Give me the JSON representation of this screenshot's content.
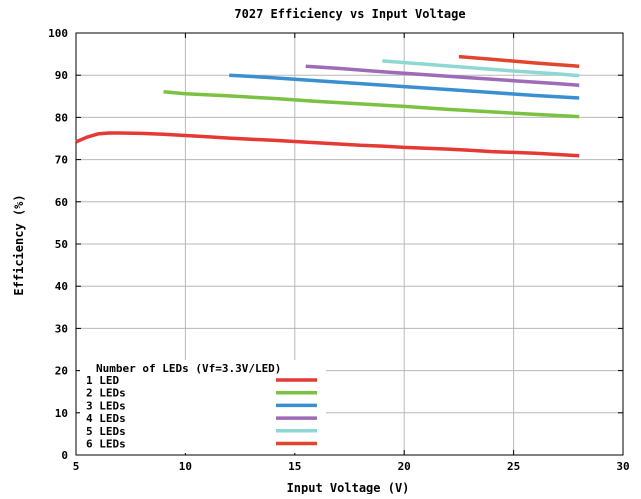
{
  "chart_data": {
    "type": "line",
    "title": "7027 Efficiency vs Input Voltage",
    "xlabel": "Input Voltage (V)",
    "ylabel": "Efficiency (%)",
    "xlim": [
      5,
      30
    ],
    "ylim": [
      0,
      100
    ],
    "x_ticks": [
      "5",
      "10",
      "15",
      "20",
      "25",
      "30"
    ],
    "y_ticks": [
      "0",
      "10",
      "20",
      "30",
      "40",
      "50",
      "60",
      "70",
      "80",
      "90",
      "100"
    ],
    "grid": true,
    "legend_title": "Number of LEDs (Vf=3.3V/LED)",
    "legend_position": "bottom-left",
    "series": [
      {
        "name": "1 LED",
        "color": "#e53935",
        "points": [
          [
            5,
            74.2
          ],
          [
            5.5,
            75.3
          ],
          [
            6,
            76.1
          ],
          [
            6.5,
            76.3
          ],
          [
            7,
            76.3
          ],
          [
            8,
            76.2
          ],
          [
            9,
            76.0
          ],
          [
            10,
            75.7
          ],
          [
            11,
            75.4
          ],
          [
            12,
            75.1
          ],
          [
            13,
            74.8
          ],
          [
            14,
            74.6
          ],
          [
            15,
            74.3
          ],
          [
            16,
            74.0
          ],
          [
            17,
            73.7
          ],
          [
            18,
            73.4
          ],
          [
            19,
            73.2
          ],
          [
            20,
            72.9
          ],
          [
            21,
            72.7
          ],
          [
            22,
            72.5
          ],
          [
            23,
            72.2
          ],
          [
            24,
            71.9
          ],
          [
            25,
            71.7
          ],
          [
            26,
            71.5
          ],
          [
            27,
            71.2
          ],
          [
            28,
            70.9
          ]
        ]
      },
      {
        "name": "2 LEDs",
        "color": "#7cc242",
        "points": [
          [
            9,
            86.1
          ],
          [
            10,
            85.6
          ],
          [
            12,
            85.1
          ],
          [
            14,
            84.5
          ],
          [
            16,
            83.8
          ],
          [
            18,
            83.2
          ],
          [
            20,
            82.6
          ],
          [
            22,
            81.9
          ],
          [
            24,
            81.3
          ],
          [
            26,
            80.7
          ],
          [
            28,
            80.2
          ]
        ]
      },
      {
        "name": "3 LEDs",
        "color": "#3a8fd0",
        "points": [
          [
            12,
            90.0
          ],
          [
            14,
            89.4
          ],
          [
            16,
            88.7
          ],
          [
            18,
            88.0
          ],
          [
            20,
            87.3
          ],
          [
            22,
            86.6
          ],
          [
            24,
            85.9
          ],
          [
            26,
            85.2
          ],
          [
            28,
            84.6
          ]
        ]
      },
      {
        "name": "4 LEDs",
        "color": "#9e6bb8",
        "points": [
          [
            15.5,
            92.1
          ],
          [
            17,
            91.6
          ],
          [
            19,
            90.8
          ],
          [
            21,
            90.1
          ],
          [
            23,
            89.4
          ],
          [
            25,
            88.7
          ],
          [
            27,
            88.0
          ],
          [
            28,
            87.6
          ]
        ]
      },
      {
        "name": "5 LEDs",
        "color": "#8ed8d4",
        "points": [
          [
            19,
            93.4
          ],
          [
            21,
            92.6
          ],
          [
            23,
            91.8
          ],
          [
            25,
            91.0
          ],
          [
            27,
            90.3
          ],
          [
            28,
            89.9
          ]
        ]
      },
      {
        "name": "6 LEDs",
        "color": "#e0452e",
        "points": [
          [
            22.5,
            94.4
          ],
          [
            24,
            93.8
          ],
          [
            26,
            92.9
          ],
          [
            28,
            92.1
          ]
        ]
      }
    ]
  }
}
